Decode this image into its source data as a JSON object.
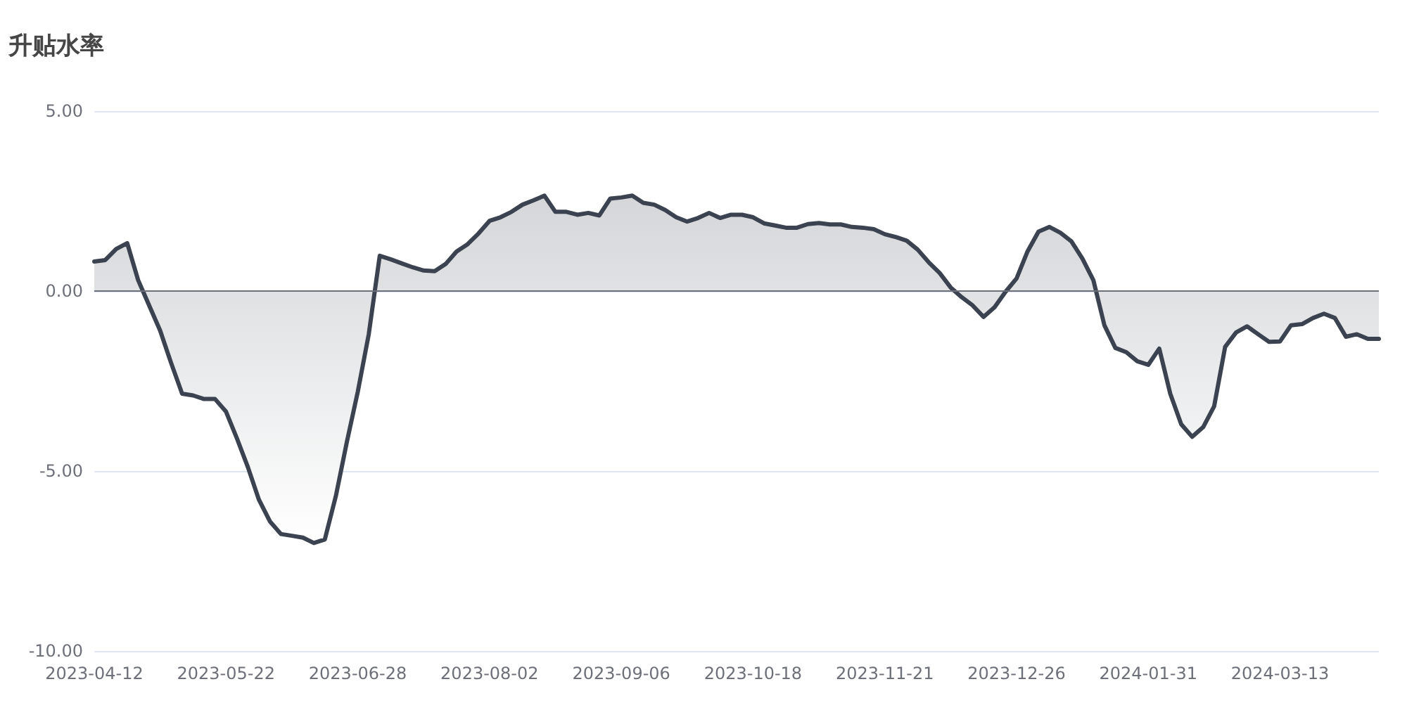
{
  "chart_data": {
    "type": "area",
    "title": "升贴水率",
    "categories": [
      "2023-04-12",
      null,
      null,
      null,
      null,
      null,
      null,
      null,
      null,
      null,
      null,
      null,
      "2023-05-22",
      null,
      null,
      null,
      null,
      null,
      null,
      null,
      null,
      null,
      null,
      null,
      "2023-06-28",
      null,
      null,
      null,
      null,
      null,
      null,
      null,
      null,
      null,
      null,
      null,
      "2023-08-02",
      null,
      null,
      null,
      null,
      null,
      null,
      null,
      null,
      null,
      null,
      null,
      "2023-09-06",
      null,
      null,
      null,
      null,
      null,
      null,
      null,
      null,
      null,
      null,
      null,
      "2023-10-18",
      null,
      null,
      null,
      null,
      null,
      null,
      null,
      null,
      null,
      null,
      null,
      "2023-11-21",
      null,
      null,
      null,
      null,
      null,
      null,
      null,
      null,
      null,
      null,
      null,
      "2023-12-26",
      null,
      null,
      null,
      null,
      null,
      null,
      null,
      null,
      null,
      null,
      null,
      "2024-01-31",
      null,
      null,
      null,
      null,
      null,
      null,
      null,
      null,
      null,
      null,
      null,
      "2024-03-13",
      null,
      null,
      null,
      null,
      null,
      null,
      null,
      null,
      null
    ],
    "series": [
      {
        "color": "#3b4350",
        "values": [
          0.82,
          0.86,
          1.17,
          1.33,
          0.3,
          -0.4,
          -1.1,
          -2.0,
          -2.85,
          -2.9,
          -3.0,
          -3.0,
          -3.35,
          -4.1,
          -4.9,
          -5.8,
          -6.4,
          -6.75,
          -6.8,
          -6.85,
          -7.0,
          -6.9,
          -5.7,
          -4.2,
          -2.8,
          -1.2,
          0.98,
          0.88,
          0.77,
          0.66,
          0.57,
          0.55,
          0.75,
          1.1,
          1.3,
          1.6,
          1.95,
          2.05,
          2.2,
          2.4,
          2.52,
          2.65,
          2.2,
          2.2,
          2.12,
          2.17,
          2.1,
          2.57,
          2.6,
          2.65,
          2.45,
          2.4,
          2.25,
          2.05,
          1.93,
          2.03,
          2.17,
          2.03,
          2.12,
          2.12,
          2.05,
          1.88,
          1.82,
          1.76,
          1.76,
          1.86,
          1.89,
          1.85,
          1.85,
          1.78,
          1.76,
          1.72,
          1.58,
          1.5,
          1.4,
          1.15,
          0.8,
          0.5,
          0.1,
          -0.17,
          -0.4,
          -0.72,
          -0.45,
          -0.02,
          0.35,
          1.1,
          1.65,
          1.78,
          1.62,
          1.38,
          0.9,
          0.3,
          -0.95,
          -1.58,
          -1.7,
          -1.95,
          -2.05,
          -1.6,
          -2.85,
          -3.7,
          -4.05,
          -3.78,
          -3.2,
          -1.55,
          -1.15,
          -0.98,
          -1.2,
          -1.41,
          -1.4,
          -0.95,
          -0.92,
          -0.75,
          -0.63,
          -0.75,
          -1.27,
          -1.2,
          -1.33,
          -1.33
        ]
      }
    ],
    "ylim": [
      -10,
      5
    ],
    "yticks": [
      {
        "value": -10,
        "label": "-10.00"
      },
      {
        "value": -5,
        "label": "-5.00"
      },
      {
        "value": 0,
        "label": "0.00"
      },
      {
        "value": 5,
        "label": "5.00"
      }
    ],
    "grid": "y",
    "marker": "none",
    "line_style": "solid"
  }
}
